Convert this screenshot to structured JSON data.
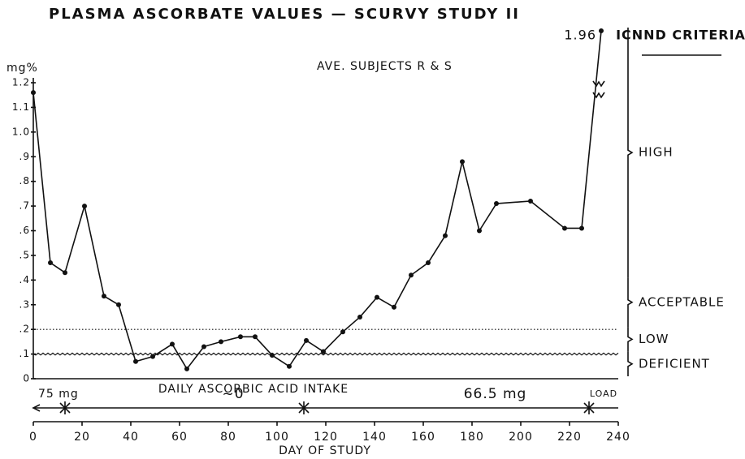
{
  "chart_data": {
    "type": "line",
    "title": "PLASMA ASCORBATE VALUES — SCURVY STUDY II",
    "annotation": "AVE. SUBJECTS R & S",
    "y_label": "mg%",
    "x_label": "DAY OF STUDY",
    "x": [
      0,
      7,
      13,
      21,
      29,
      35,
      42,
      49,
      57,
      63,
      70,
      77,
      85,
      91,
      98,
      105,
      112,
      119,
      127,
      134,
      141,
      148,
      155,
      162,
      169,
      176,
      183,
      190,
      204,
      218,
      225,
      233
    ],
    "values": [
      1.16,
      0.47,
      0.43,
      0.7,
      0.335,
      0.3,
      0.07,
      0.09,
      0.14,
      0.04,
      0.13,
      0.15,
      0.17,
      0.17,
      0.095,
      0.05,
      0.155,
      0.11,
      0.19,
      0.25,
      0.33,
      0.29,
      0.42,
      0.47,
      0.58,
      0.88,
      0.6,
      0.71,
      0.72,
      0.61,
      0.61,
      1.96
    ],
    "color": "#111111",
    "xlim": [
      0,
      240
    ],
    "xticks": [
      0,
      20,
      40,
      60,
      80,
      100,
      120,
      140,
      160,
      180,
      200,
      220,
      240
    ],
    "ylim": [
      0,
      1.2
    ],
    "yticks": [
      0,
      {
        "value": 0.1,
        "label": ".1"
      },
      {
        "value": 0.2,
        "label": ".2"
      },
      {
        "value": 0.3,
        "label": ".3"
      },
      {
        "value": 0.4,
        "label": ".4"
      },
      {
        "value": 0.5,
        "label": ".5"
      },
      {
        "value": 0.6,
        "label": ".6"
      },
      {
        "value": 0.7,
        "label": ".7"
      },
      {
        "value": 0.8,
        "label": ".8"
      },
      {
        "value": 0.9,
        "label": ".9"
      },
      {
        "value": 1.0,
        "label": "1.0"
      },
      1.1,
      1.2
    ],
    "reference_lines": [
      {
        "value": 0.2,
        "style": "dotted"
      },
      {
        "value": 0.1,
        "style": "wavy"
      }
    ],
    "criteria_title": "ICNND CRITERIA",
    "criteria": [
      {
        "label": "HIGH",
        "from": 0.4
      },
      {
        "label": "ACCEPTABLE",
        "from": 0.2,
        "to": 0.4
      },
      {
        "label": "LOW",
        "from": 0.1,
        "to": 0.2
      },
      {
        "label": "DEFICIENT",
        "from": 0,
        "to": 0.1
      }
    ],
    "intake_title": "DAILY ASCORBIC ACID INTAKE",
    "intake": [
      {
        "label": "75 mg",
        "from": 0,
        "to": 13
      },
      {
        "label": "~0",
        "from": 13,
        "to": 111
      },
      {
        "label": "66.5 mg",
        "from": 111,
        "to": 228
      },
      {
        "label": "LOAD",
        "from": 228,
        "to": 240
      }
    ]
  }
}
